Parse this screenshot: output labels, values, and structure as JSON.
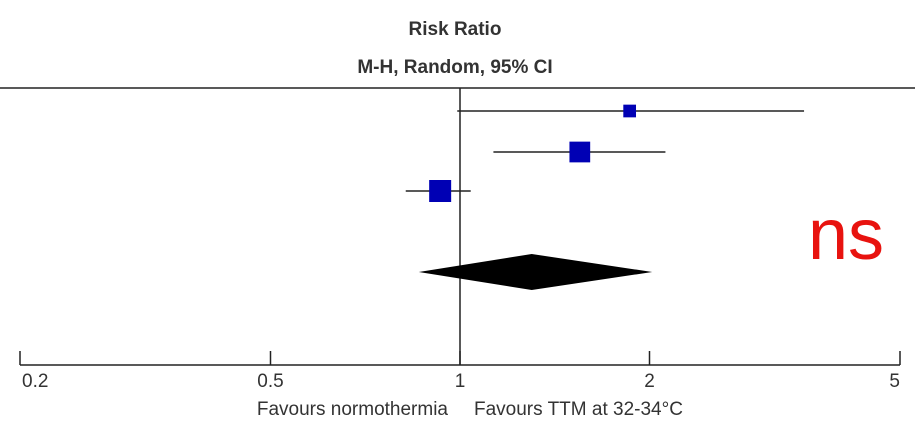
{
  "chart_data": {
    "type": "forest",
    "title": "Risk Ratio",
    "subtitle": "M-H, Random, 95% CI",
    "x_scale": "log",
    "xlim": [
      0.2,
      5
    ],
    "xticks": [
      0.2,
      0.5,
      1,
      2,
      5
    ],
    "reference": 1,
    "studies": {
      "estimate": [
        1.86,
        1.55,
        0.93
      ],
      "lower": [
        0.99,
        1.13,
        0.82
      ],
      "upper": [
        3.52,
        2.12,
        1.04
      ],
      "weight": [
        15,
        40,
        45
      ]
    },
    "pooled": {
      "estimate": 1.3,
      "lower": 0.86,
      "upper": 2.02
    },
    "color": "#0000b4",
    "pooled_color": "#000000",
    "left_label": "Favours normothermia",
    "right_label": "Favours TTM at 32-34°C",
    "annotation": "ns",
    "annotation_color": "#e8130f"
  }
}
